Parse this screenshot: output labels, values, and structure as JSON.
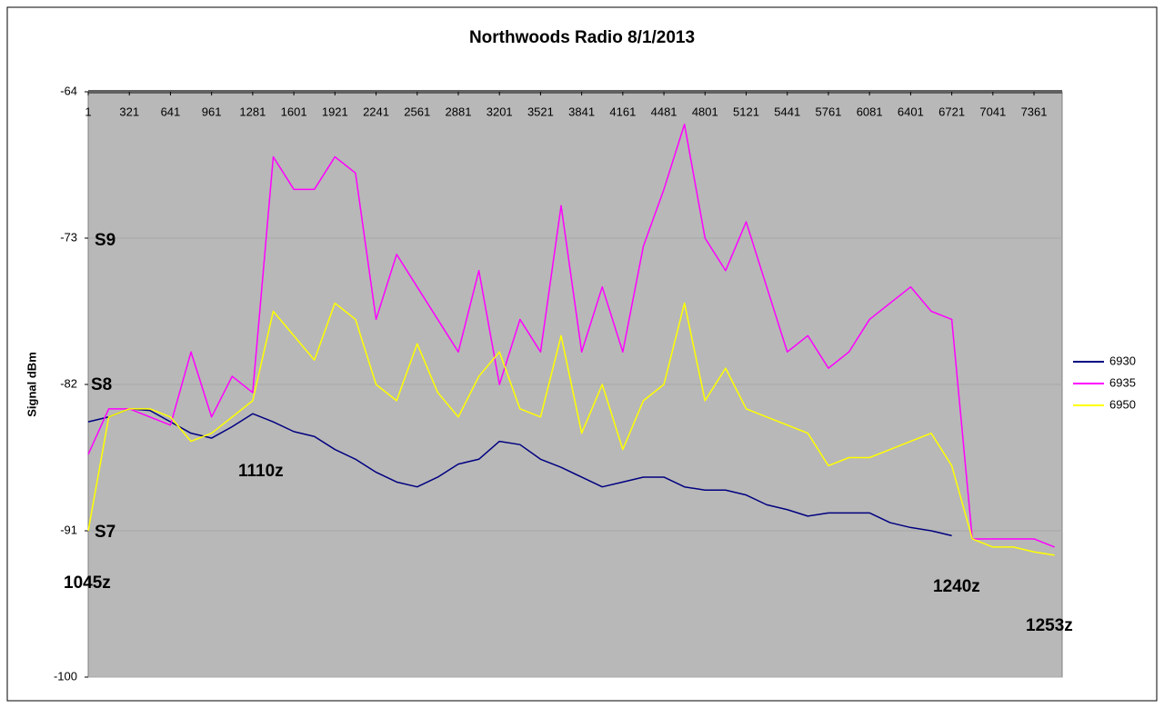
{
  "chart_data": {
    "type": "line",
    "title": "Northwoods Radio 8/1/2013",
    "y_label": "Signal dBm",
    "x": [
      1,
      161,
      321,
      481,
      641,
      801,
      961,
      1121,
      1281,
      1441,
      1601,
      1761,
      1921,
      2081,
      2241,
      2401,
      2561,
      2721,
      2881,
      3041,
      3201,
      3361,
      3521,
      3681,
      3841,
      4001,
      4161,
      4321,
      4481,
      4641,
      4801,
      4961,
      5121,
      5281,
      5441,
      5601,
      5761,
      5921,
      6081,
      6241,
      6401,
      6561,
      6721,
      6881,
      7041,
      7201,
      7361,
      7521
    ],
    "xlim": [
      1,
      7580
    ],
    "xticks": [
      1,
      321,
      641,
      961,
      1281,
      1601,
      1921,
      2241,
      2561,
      2881,
      3201,
      3521,
      3841,
      4161,
      4481,
      4801,
      5121,
      5441,
      5761,
      6081,
      6401,
      6721,
      7041,
      7361
    ],
    "ylim": [
      -100,
      -64
    ],
    "yticks": [
      -100,
      -91,
      -82,
      -73,
      -64
    ],
    "grid": true,
    "legend": "right",
    "series": [
      {
        "name": "6930",
        "color": "#000080",
        "values": [
          -84.3,
          -84,
          -83.5,
          -83.6,
          -84.3,
          -85,
          -85.3,
          -84.6,
          -83.8,
          -84.3,
          -84.9,
          -85.2,
          -86,
          -86.6,
          -87.4,
          -88,
          -88.3,
          -87.7,
          -86.9,
          -86.6,
          -85.5,
          -85.7,
          -86.6,
          -87.1,
          -87.7,
          -88.3,
          -88,
          -87.7,
          -87.7,
          -88.3,
          -88.5,
          -88.5,
          -88.8,
          -89.4,
          -89.7,
          -90.1,
          -89.9,
          -89.9,
          -89.9,
          -90.5,
          -90.8,
          -91,
          -91.3,
          null,
          null,
          null,
          null,
          null
        ]
      },
      {
        "name": "6935",
        "color": "#ff00ff",
        "values": [
          -86.3,
          -83.5,
          -83.5,
          -84,
          -84.5,
          -80,
          -84,
          -81.5,
          -82.5,
          -68,
          -70,
          -70,
          -68,
          -69,
          -78,
          -74,
          -76,
          -78,
          -80,
          -75,
          -82,
          -78,
          -80,
          -71,
          -80,
          -76,
          -80,
          -73.5,
          -70,
          -66,
          -73,
          -75,
          -72,
          -76,
          -80,
          -79,
          -81,
          -80,
          -78,
          -77,
          -76,
          -77.5,
          -78,
          -91.5,
          -91.5,
          -91.5,
          -91.5,
          -92
        ]
      },
      {
        "name": "6950",
        "color": "#ffff00",
        "values": [
          -91,
          -84,
          -83.5,
          -83.5,
          -84,
          -85.5,
          -85,
          -84,
          -83,
          -77.5,
          -79,
          -80.5,
          -77,
          -78,
          -82,
          -83,
          -79.5,
          -82.5,
          -84,
          -81.5,
          -80,
          -83.5,
          -84,
          -79,
          -85,
          -82,
          -86,
          -83,
          -82,
          -77,
          -83,
          -81,
          -83.5,
          -84,
          -84.5,
          -85,
          -87,
          -86.5,
          -86.5,
          -86,
          -85.5,
          -85,
          -87,
          -91.5,
          -92,
          -92,
          -92.3,
          -92.5
        ]
      }
    ],
    "annotations": [
      "S9",
      "S8",
      "S7",
      "1045z",
      "1110z",
      "1240z",
      "1253z"
    ]
  }
}
